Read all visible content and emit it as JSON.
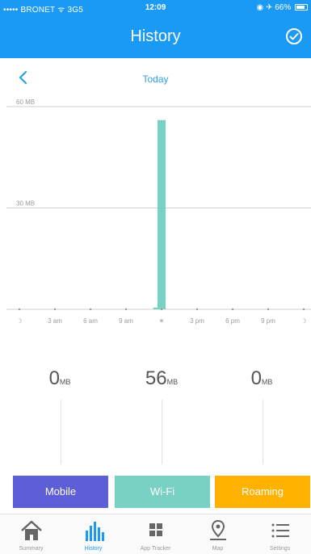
{
  "status_bar": {
    "carrier": "••••• BRONET ᯤ 3G5",
    "time": "12:09",
    "battery": "◉ ✈ 66%"
  },
  "header": {
    "title": "History"
  },
  "date_nav": {
    "label": "Today"
  },
  "chart_data": {
    "type": "bar",
    "title": "",
    "y_gridline_labels": [
      "60 MB",
      "30 MB"
    ],
    "ylim": [
      0,
      60
    ],
    "x_tick_labels": [
      "☽",
      "3 am",
      "6 am",
      "9 am",
      "☀",
      "3 pm",
      "6 pm",
      "9 pm",
      "☽"
    ],
    "x_range_hours": [
      0,
      24
    ],
    "series": [
      {
        "color": "#78d1c3",
        "bars": [
          {
            "hour": 11.5,
            "value": 0.5
          },
          {
            "hour": 12,
            "value": 56
          }
        ]
      }
    ]
  },
  "totals": [
    {
      "value": "0",
      "unit": "MB"
    },
    {
      "value": "56",
      "unit": "MB"
    },
    {
      "value": "0",
      "unit": "MB"
    }
  ],
  "legend": {
    "mobile": "Mobile",
    "wifi": "Wi-Fi",
    "roaming": "Roaming"
  },
  "colors": {
    "accent": "#1a9af5",
    "mobile": "#5e5fd6",
    "wifi": "#78d1c3",
    "roaming": "#ffb100"
  },
  "tabs": [
    {
      "label": "Summary",
      "icon": "home-icon"
    },
    {
      "label": "History",
      "icon": "bar-chart-icon"
    },
    {
      "label": "App Tracker",
      "icon": "grid-icon"
    },
    {
      "label": "Map",
      "icon": "map-pin-icon"
    },
    {
      "label": "Settings",
      "icon": "list-icon"
    }
  ]
}
